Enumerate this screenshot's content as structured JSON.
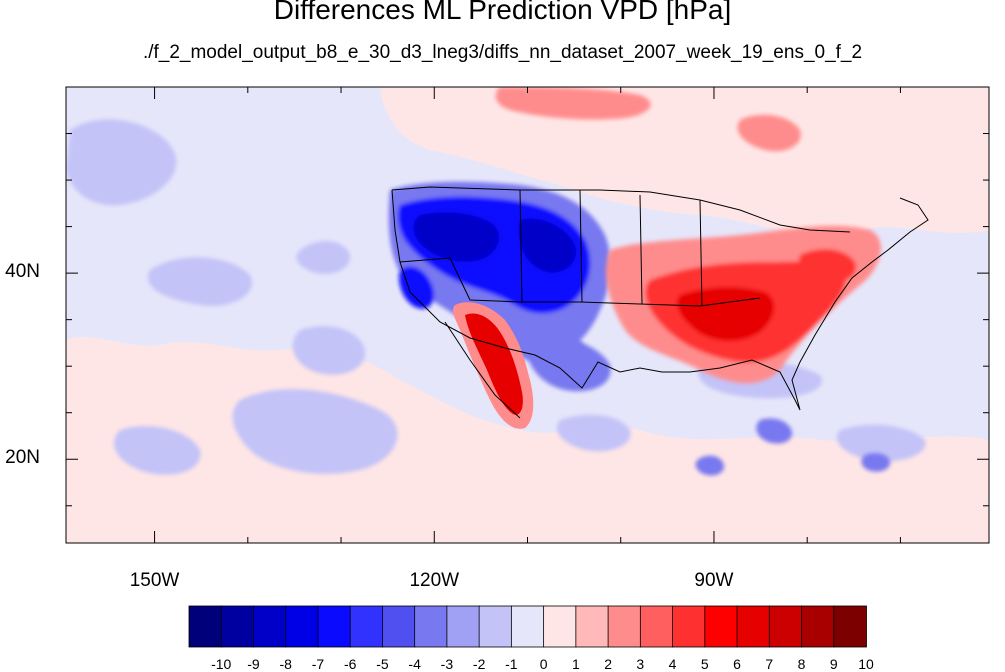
{
  "title": "Differences ML Prediction VPD [hPa]",
  "subtitle": "./f_2_model_output_b8_e_30_d3_lneg3/diffs_nn_dataset_2007_week_19_ens_0_f_2",
  "axes": {
    "x_ticks": [
      {
        "lon": -150,
        "label": "150W"
      },
      {
        "lon": -120,
        "label": "120W"
      },
      {
        "lon": -90,
        "label": "90W"
      }
    ],
    "y_ticks": [
      {
        "lat": 40,
        "label": "40N"
      },
      {
        "lat": 20,
        "label": "20N"
      }
    ],
    "lon_range": [
      -159.5,
      -60.5
    ],
    "lat_range": [
      11,
      60
    ]
  },
  "colorbar": {
    "labels": [
      "-10",
      "-9",
      "-8",
      "-7",
      "-6",
      "-5",
      "-4",
      "-3",
      "-2",
      "-1",
      "0",
      "1",
      "2",
      "3",
      "4",
      "5",
      "6",
      "7",
      "8",
      "9",
      "10"
    ],
    "colors": [
      "#00007a",
      "#0000a0",
      "#0000c8",
      "#0000e6",
      "#0a0aff",
      "#3232ff",
      "#5050f0",
      "#7878f0",
      "#a0a0f4",
      "#c3c3f8",
      "#e6e6fa",
      "#ffe6e6",
      "#ffb9b9",
      "#ff8c8c",
      "#ff5f5f",
      "#ff3030",
      "#ff0000",
      "#e60000",
      "#cc0000",
      "#a80000",
      "#7d0000"
    ]
  },
  "map_colors": {
    "background": "#e6e6fa",
    "light_red": "#ffe6e6",
    "mid_red": "#ff8c8c",
    "strong_red": "#ff3030",
    "deep_red": "#e60000",
    "light_blue": "#c3c3f8",
    "mid_blue": "#7878f0",
    "strong_blue": "#0a0aff",
    "deep_blue": "#0000c8"
  }
}
